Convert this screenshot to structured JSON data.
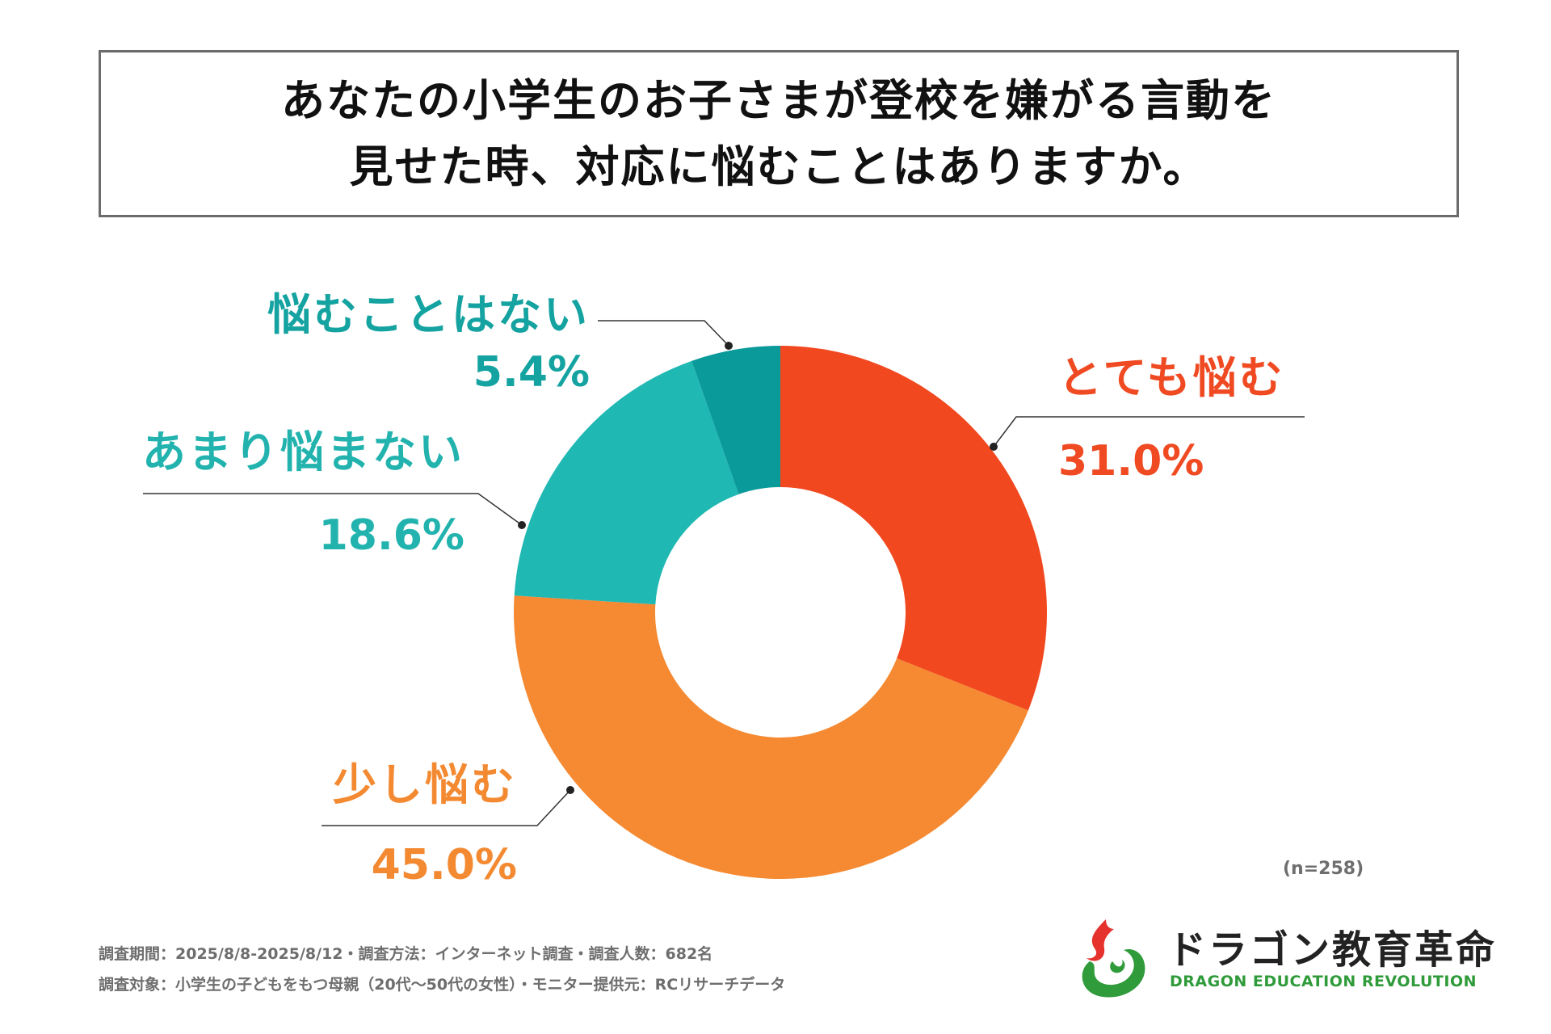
{
  "title": {
    "line1": "あなたの小学生のお子さまが登校を嫌がる言動を",
    "line2": "見せた時、対応に悩むことはありますか。"
  },
  "chart_data": {
    "type": "pie",
    "donut": true,
    "categories": [
      "とても悩む",
      "少し悩む",
      "あまり悩まない",
      "悩むことはない"
    ],
    "values": [
      31.0,
      45.0,
      18.6,
      5.4
    ],
    "value_labels": [
      "31.0%",
      "45.0%",
      "18.6%",
      "5.4%"
    ],
    "colors": [
      "#f1481f",
      "#f58a33",
      "#20b8b3",
      "#0a9a9a"
    ],
    "label_colors": [
      "#ef4a22",
      "#f38a32",
      "#22b3ae",
      "#14a3a0"
    ],
    "legend": "none"
  },
  "sample_size": "(n=258)",
  "footnotes": {
    "line1": "調査期間：2025/8/8-2025/8/12・調査方法：インターネット調査・調査人数：682名",
    "line2": "調査対象：小学生の子どもをもつ母親（20代～50代の女性）・モニター提供元：RCリサーチデータ"
  },
  "logo": {
    "name_ja": "ドラゴン教育革命",
    "name_en": "DRAGON EDUCATION REVOLUTION",
    "icon": "dragon-logo-icon",
    "colors": [
      "#e5322d",
      "#2f9b3a"
    ]
  }
}
